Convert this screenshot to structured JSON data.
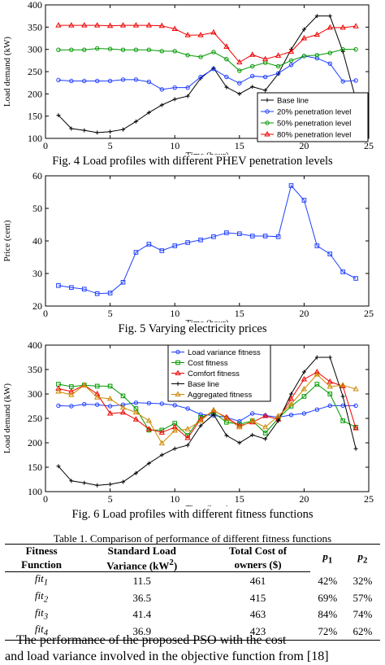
{
  "colors": {
    "base": "#000000",
    "blue": "#1f3fff",
    "green": "#009900",
    "red": "#ee0000",
    "orange": "#cc8800"
  },
  "figures": [
    {
      "caption": "Fig. 4 Load profiles with different PHEV penetration levels",
      "chart_data": {
        "type": "line",
        "xlabel": "Time (hour)",
        "ylabel": "Load demand (kW)",
        "xlim": [
          0,
          25
        ],
        "ylim": [
          100,
          400
        ],
        "xticks": [
          0,
          5,
          10,
          15,
          20,
          25
        ],
        "yticks": [
          100,
          150,
          200,
          250,
          300,
          350,
          400
        ],
        "legend_position": "bottom-right",
        "x": [
          1,
          2,
          3,
          4,
          5,
          6,
          7,
          8,
          9,
          10,
          11,
          12,
          13,
          14,
          15,
          16,
          17,
          18,
          19,
          20,
          21,
          22,
          23,
          24
        ],
        "series": [
          {
            "name": "Base line",
            "color": "#000000",
            "marker": "plus",
            "values": [
              152,
              122,
              118,
              113,
              115,
              120,
              138,
              158,
              175,
              188,
              195,
              235,
              258,
              215,
              200,
              216,
              208,
              245,
              300,
              345,
              375,
              375,
              295,
              188
            ]
          },
          {
            "name": "20% penetration level",
            "color": "#1f3fff",
            "marker": "circle",
            "values": [
              231,
              229,
              229,
              229,
              229,
              232,
              232,
              227,
              210,
              214,
              214,
              238,
              256,
              238,
              224,
              240,
              238,
              246,
              265,
              285,
              280,
              268,
              228,
              230
            ]
          },
          {
            "name": "50% penetration level",
            "color": "#009900",
            "marker": "circle",
            "values": [
              299,
              299,
              299,
              302,
              301,
              299,
              299,
              299,
              296,
              296,
              287,
              283,
              294,
              278,
              252,
              262,
              270,
              262,
              275,
              285,
              287,
              292,
              300,
              300
            ]
          },
          {
            "name": "80% penetration level",
            "color": "#ee0000",
            "marker": "triangle",
            "values": [
              354,
              354,
              354,
              354,
              353,
              354,
              354,
              354,
              353,
              346,
              332,
              332,
              338,
              306,
              271,
              288,
              278,
              286,
              295,
              325,
              333,
              349,
              349,
              352
            ]
          }
        ]
      }
    },
    {
      "caption": "Fig. 5 Varying electricity prices",
      "chart_data": {
        "type": "line",
        "xlabel": "Time (hour)",
        "ylabel": "Price (cent)",
        "xlim": [
          0,
          25
        ],
        "ylim": [
          20,
          60
        ],
        "xticks": [
          0,
          5,
          10,
          15,
          20,
          25
        ],
        "yticks": [
          20,
          30,
          40,
          50,
          60
        ],
        "x": [
          1,
          2,
          3,
          4,
          5,
          6,
          7,
          8,
          9,
          10,
          11,
          12,
          13,
          14,
          15,
          16,
          17,
          18,
          19,
          20,
          21,
          22,
          23,
          24
        ],
        "series": [
          {
            "color": "#1f3fff",
            "marker": "square",
            "values": [
              26.3,
              25.7,
              25.2,
              23.8,
              24,
              27.3,
              36.5,
              39,
              37,
              38.5,
              39.5,
              40.3,
              41.3,
              42.5,
              42.2,
              41.5,
              41.5,
              41.3,
              57,
              52.5,
              38.5,
              36,
              30.5,
              28.5
            ]
          }
        ]
      }
    },
    {
      "caption": "Fig. 6 Load profiles with different fitness functions",
      "chart_data": {
        "type": "line",
        "xlabel": "Time (hour)",
        "ylabel": "Load demand (kW)",
        "xlim": [
          0,
          25
        ],
        "ylim": [
          100,
          400
        ],
        "xticks": [
          0,
          5,
          10,
          15,
          20,
          25
        ],
        "yticks": [
          100,
          150,
          200,
          250,
          300,
          350,
          400
        ],
        "legend_position": "top-center",
        "x": [
          1,
          2,
          3,
          4,
          5,
          6,
          7,
          8,
          9,
          10,
          11,
          12,
          13,
          14,
          15,
          16,
          17,
          18,
          19,
          20,
          21,
          22,
          23,
          24
        ],
        "series": [
          {
            "name": "Load variance fitness",
            "color": "#1f3fff",
            "marker": "circle",
            "values": [
              276,
              275,
              279,
              278,
              275,
              278,
              282,
              281,
              280,
              277,
              270,
              258,
              256,
              252,
              244,
              260,
              256,
              252,
              257,
              260,
              268,
              276,
              276,
              276
            ]
          },
          {
            "name": "Cost fitness",
            "color": "#009900",
            "marker": "square",
            "values": [
              320,
              315,
              318,
              316,
              316,
              296,
              270,
              226,
              226,
              240,
              215,
              252,
              262,
              242,
              238,
              245,
              220,
              250,
              275,
              295,
              320,
              300,
              245,
              232
            ]
          },
          {
            "name": "Comfort fitness",
            "color": "#ee0000",
            "marker": "triangle",
            "values": [
              311,
              305,
              318,
              300,
              260,
              262,
              248,
              228,
              221,
              232,
              210,
              248,
              266,
              252,
              235,
              242,
              255,
              248,
              290,
              330,
              345,
              325,
              316,
              230
            ]
          },
          {
            "name": "Base line",
            "color": "#000000",
            "marker": "plus",
            "values": [
              152,
              122,
              118,
              113,
              115,
              120,
              138,
              158,
              175,
              188,
              195,
              235,
              258,
              215,
              200,
              216,
              208,
              245,
              300,
              345,
              375,
              375,
              295,
              188
            ]
          },
          {
            "name": "Aggregated fitness",
            "color": "#cc8800",
            "marker": "triangle",
            "values": [
              305,
              298,
              318,
              293,
              290,
              272,
              262,
              245,
              199,
              225,
              228,
              245,
              267,
              250,
              232,
              245,
              232,
              255,
              279,
              310,
              340,
              315,
              318,
              310
            ]
          }
        ]
      }
    }
  ],
  "table": {
    "title": "Table 1. Comparison of performance of different fitness functions",
    "headers": [
      [
        "Fitness",
        "Function"
      ],
      [
        "Standard Load",
        "Variance (kW",
        "2",
        ")"
      ],
      [
        "Total Cost of",
        "owners ($)"
      ],
      [
        "p",
        "1"
      ],
      [
        "p",
        "2"
      ]
    ],
    "rows": [
      {
        "name": "fit",
        "sub": "1",
        "variance": "11.5",
        "cost": "461",
        "p1": "42%",
        "p2": "32%"
      },
      {
        "name": "fit",
        "sub": "2",
        "variance": "36.5",
        "cost": "415",
        "p1": "69%",
        "p2": "57%"
      },
      {
        "name": "fit",
        "sub": "3",
        "variance": "41.4",
        "cost": "463",
        "p1": "84%",
        "p2": "74%"
      },
      {
        "name": "fit",
        "sub": "4",
        "variance": "36.9",
        "cost": "423",
        "p1": "72%",
        "p2": "62%"
      }
    ]
  },
  "paragraph": {
    "line1": "The performance of the proposed PSO with the cost",
    "line2": "and load variance involved in the objective function from [18]"
  }
}
